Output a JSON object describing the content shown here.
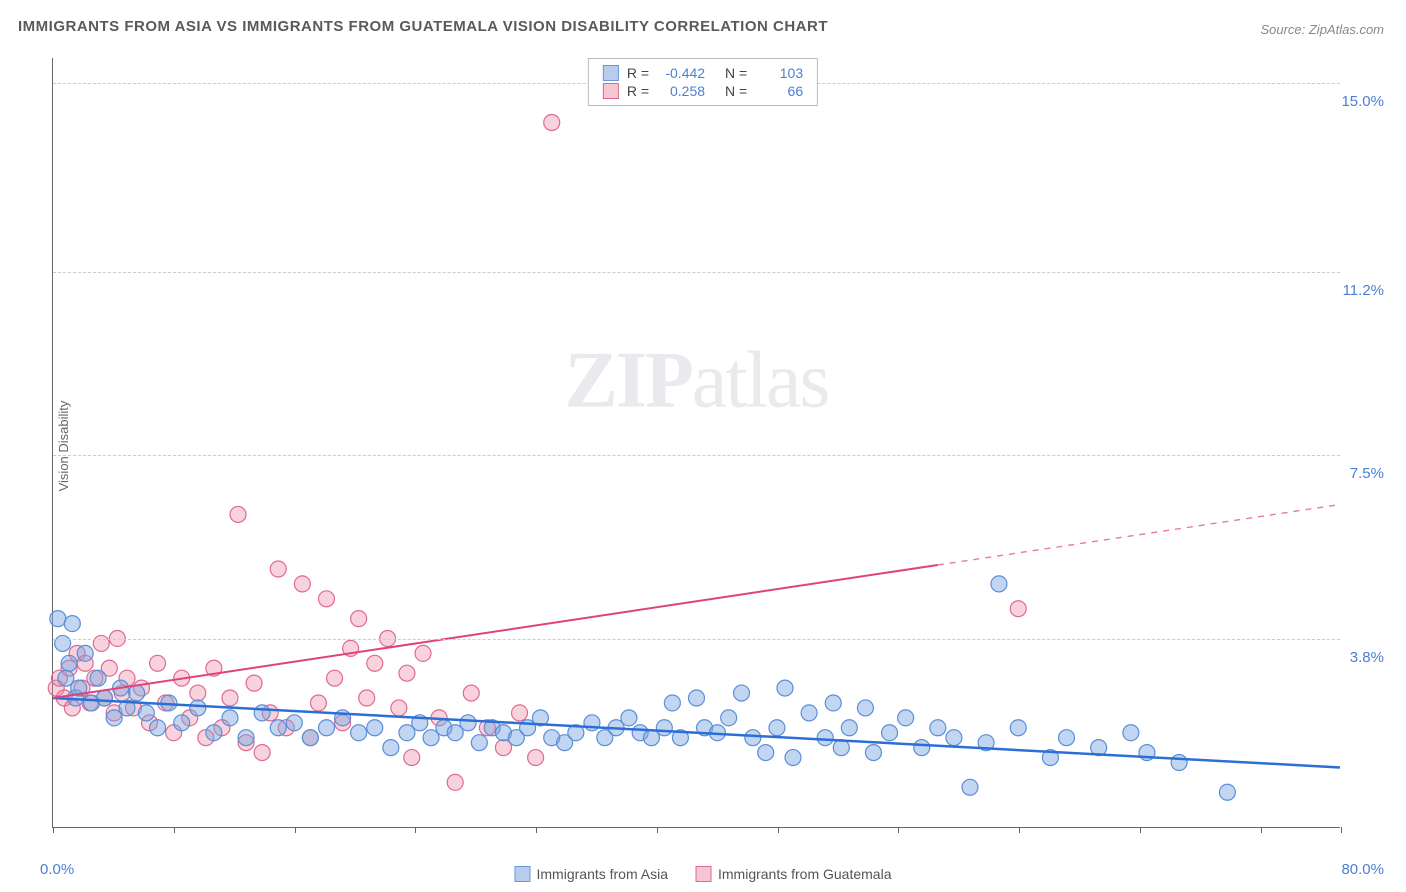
{
  "title": "IMMIGRANTS FROM ASIA VS IMMIGRANTS FROM GUATEMALA VISION DISABILITY CORRELATION CHART",
  "source": "Source: ZipAtlas.com",
  "watermark": {
    "part1": "ZIP",
    "part2": "atlas"
  },
  "y_axis_label": "Vision Disability",
  "chart": {
    "type": "scatter",
    "background_color": "#ffffff",
    "grid_color": "#cccccc",
    "axis_color": "#666666",
    "label_color": "#4a7fd8",
    "xlim": [
      0,
      80
    ],
    "ylim": [
      0,
      15.5
    ],
    "x_ticks_pct": [
      0,
      7.5,
      15,
      22.5,
      30,
      37.5,
      45,
      52.5,
      60,
      67.5,
      75,
      80
    ],
    "x_labels": {
      "0": "0.0%",
      "80": "80.0%"
    },
    "y_gridlines": [
      3.8,
      7.5,
      11.2,
      15.0
    ],
    "y_labels": [
      "3.8%",
      "7.5%",
      "11.2%",
      "15.0%"
    ],
    "series": [
      {
        "name": "Immigrants from Asia",
        "color_fill": "rgba(120,165,225,0.45)",
        "color_stroke": "#5a8ed8",
        "swatch_fill": "#b8cdee",
        "swatch_border": "#6b97d6",
        "R": "-0.442",
        "N": "103",
        "trend": {
          "x1": 0,
          "y1": 2.6,
          "x2": 80,
          "y2": 1.2,
          "color": "#2b6fd6",
          "width": 2.5,
          "solid_to_x": 80
        },
        "marker_radius": 8,
        "points": [
          [
            0.3,
            4.2
          ],
          [
            0.6,
            3.7
          ],
          [
            0.8,
            3.0
          ],
          [
            1.0,
            3.3
          ],
          [
            1.2,
            4.1
          ],
          [
            1.4,
            2.6
          ],
          [
            1.6,
            2.8
          ],
          [
            2.0,
            3.5
          ],
          [
            2.4,
            2.5
          ],
          [
            2.8,
            3.0
          ],
          [
            3.2,
            2.6
          ],
          [
            3.8,
            2.2
          ],
          [
            4.2,
            2.8
          ],
          [
            4.6,
            2.4
          ],
          [
            5.2,
            2.7
          ],
          [
            5.8,
            2.3
          ],
          [
            6.5,
            2.0
          ],
          [
            7.2,
            2.5
          ],
          [
            8.0,
            2.1
          ],
          [
            9.0,
            2.4
          ],
          [
            10.0,
            1.9
          ],
          [
            11.0,
            2.2
          ],
          [
            12.0,
            1.8
          ],
          [
            13.0,
            2.3
          ],
          [
            14.0,
            2.0
          ],
          [
            15.0,
            2.1
          ],
          [
            16.0,
            1.8
          ],
          [
            17.0,
            2.0
          ],
          [
            18.0,
            2.2
          ],
          [
            19.0,
            1.9
          ],
          [
            20.0,
            2.0
          ],
          [
            21.0,
            1.6
          ],
          [
            22.0,
            1.9
          ],
          [
            22.8,
            2.1
          ],
          [
            23.5,
            1.8
          ],
          [
            24.3,
            2.0
          ],
          [
            25.0,
            1.9
          ],
          [
            25.8,
            2.1
          ],
          [
            26.5,
            1.7
          ],
          [
            27.3,
            2.0
          ],
          [
            28.0,
            1.9
          ],
          [
            28.8,
            1.8
          ],
          [
            29.5,
            2.0
          ],
          [
            30.3,
            2.2
          ],
          [
            31.0,
            1.8
          ],
          [
            31.8,
            1.7
          ],
          [
            32.5,
            1.9
          ],
          [
            33.5,
            2.1
          ],
          [
            34.3,
            1.8
          ],
          [
            35.0,
            2.0
          ],
          [
            35.8,
            2.2
          ],
          [
            36.5,
            1.9
          ],
          [
            37.2,
            1.8
          ],
          [
            38.0,
            2.0
          ],
          [
            38.5,
            2.5
          ],
          [
            39.0,
            1.8
          ],
          [
            40.0,
            2.6
          ],
          [
            40.5,
            2.0
          ],
          [
            41.3,
            1.9
          ],
          [
            42.0,
            2.2
          ],
          [
            42.8,
            2.7
          ],
          [
            43.5,
            1.8
          ],
          [
            44.3,
            1.5
          ],
          [
            45.0,
            2.0
          ],
          [
            45.5,
            2.8
          ],
          [
            46.0,
            1.4
          ],
          [
            47.0,
            2.3
          ],
          [
            48.0,
            1.8
          ],
          [
            48.5,
            2.5
          ],
          [
            49.0,
            1.6
          ],
          [
            49.5,
            2.0
          ],
          [
            50.5,
            2.4
          ],
          [
            51.0,
            1.5
          ],
          [
            52.0,
            1.9
          ],
          [
            53.0,
            2.2
          ],
          [
            54.0,
            1.6
          ],
          [
            55.0,
            2.0
          ],
          [
            56.0,
            1.8
          ],
          [
            57.0,
            0.8
          ],
          [
            58.0,
            1.7
          ],
          [
            58.8,
            4.9
          ],
          [
            60.0,
            2.0
          ],
          [
            62.0,
            1.4
          ],
          [
            63.0,
            1.8
          ],
          [
            65.0,
            1.6
          ],
          [
            67.0,
            1.9
          ],
          [
            68.0,
            1.5
          ],
          [
            70.0,
            1.3
          ],
          [
            73.0,
            0.7
          ]
        ]
      },
      {
        "name": "Immigrants from Guatemala",
        "color_fill": "rgba(235,130,160,0.35)",
        "color_stroke": "#e06a8f",
        "swatch_fill": "#f4c7d3",
        "swatch_border": "#e06a8f",
        "R": "0.258",
        "N": "66",
        "trend": {
          "x1": 0,
          "y1": 2.6,
          "x2": 80,
          "y2": 6.5,
          "color": "#e04378",
          "width": 2,
          "solid_to_x": 55
        },
        "marker_radius": 8,
        "points": [
          [
            0.2,
            2.8
          ],
          [
            0.4,
            3.0
          ],
          [
            0.7,
            2.6
          ],
          [
            1.0,
            3.2
          ],
          [
            1.2,
            2.4
          ],
          [
            1.5,
            3.5
          ],
          [
            1.8,
            2.8
          ],
          [
            2.0,
            3.3
          ],
          [
            2.3,
            2.5
          ],
          [
            2.6,
            3.0
          ],
          [
            3.0,
            3.7
          ],
          [
            3.2,
            2.6
          ],
          [
            3.5,
            3.2
          ],
          [
            3.8,
            2.3
          ],
          [
            4.0,
            3.8
          ],
          [
            4.3,
            2.7
          ],
          [
            4.6,
            3.0
          ],
          [
            5.0,
            2.4
          ],
          [
            5.5,
            2.8
          ],
          [
            6.0,
            2.1
          ],
          [
            6.5,
            3.3
          ],
          [
            7.0,
            2.5
          ],
          [
            7.5,
            1.9
          ],
          [
            8.0,
            3.0
          ],
          [
            8.5,
            2.2
          ],
          [
            9.0,
            2.7
          ],
          [
            9.5,
            1.8
          ],
          [
            10.0,
            3.2
          ],
          [
            10.5,
            2.0
          ],
          [
            11.0,
            2.6
          ],
          [
            11.5,
            6.3
          ],
          [
            12.0,
            1.7
          ],
          [
            12.5,
            2.9
          ],
          [
            13.0,
            1.5
          ],
          [
            13.5,
            2.3
          ],
          [
            14.0,
            5.2
          ],
          [
            14.5,
            2.0
          ],
          [
            15.5,
            4.9
          ],
          [
            16.0,
            1.8
          ],
          [
            16.5,
            2.5
          ],
          [
            17.0,
            4.6
          ],
          [
            17.5,
            3.0
          ],
          [
            18.0,
            2.1
          ],
          [
            18.5,
            3.6
          ],
          [
            19.0,
            4.2
          ],
          [
            19.5,
            2.6
          ],
          [
            20.0,
            3.3
          ],
          [
            20.8,
            3.8
          ],
          [
            21.5,
            2.4
          ],
          [
            22.0,
            3.1
          ],
          [
            22.3,
            1.4
          ],
          [
            23.0,
            3.5
          ],
          [
            24.0,
            2.2
          ],
          [
            25.0,
            0.9
          ],
          [
            26.0,
            2.7
          ],
          [
            27.0,
            2.0
          ],
          [
            28.0,
            1.6
          ],
          [
            29.0,
            2.3
          ],
          [
            30.0,
            1.4
          ],
          [
            31.0,
            14.2
          ],
          [
            60.0,
            4.4
          ]
        ]
      }
    ]
  },
  "stats_labels": {
    "R": "R =",
    "N": "N ="
  },
  "legend": {
    "items": [
      {
        "label": "Immigrants from Asia",
        "fill": "#b8cdee",
        "border": "#6b97d6"
      },
      {
        "label": "Immigrants from Guatemala",
        "fill": "#f4c7d3",
        "border": "#e06a8f"
      }
    ]
  }
}
